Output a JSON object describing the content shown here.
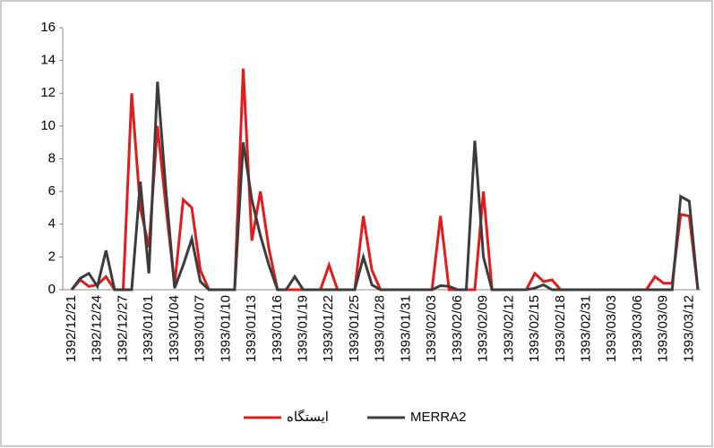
{
  "chart_data": {
    "type": "line",
    "categories": [
      "1392/12/21",
      null,
      null,
      "1392/12/24",
      null,
      null,
      "1392/12/27",
      null,
      null,
      "1393/01/01",
      null,
      null,
      "1393/01/04",
      null,
      null,
      "1393/01/07",
      null,
      null,
      "1393/01/10",
      null,
      null,
      "1393/01/13",
      null,
      null,
      "1393/01/16",
      null,
      null,
      "1393/01/19",
      null,
      null,
      "1393/01/22",
      null,
      null,
      "1393/01/25",
      null,
      null,
      "1393/01/28",
      null,
      null,
      "1393/01/31",
      null,
      null,
      "1393/02/03",
      null,
      null,
      "1393/02/06",
      null,
      null,
      "1393/02/09",
      null,
      null,
      "1393/02/12",
      null,
      null,
      "1393/02/15",
      null,
      null,
      "1393/02/18",
      null,
      null,
      "1393/02/31",
      null,
      null,
      "1393/03/03",
      null,
      null,
      "1393/03/06",
      null,
      null,
      "1393/03/09",
      null,
      null,
      "1393/03/12",
      null
    ],
    "series": [
      {
        "name": "ایستگاه",
        "color": "#e31b1b",
        "values": [
          0,
          0.6,
          0.2,
          0.3,
          0.8,
          0,
          0,
          12,
          5,
          2.6,
          10,
          5,
          0.3,
          5.5,
          5,
          1.2,
          0,
          0,
          0,
          0,
          13.5,
          3,
          6,
          2.5,
          0,
          0,
          0,
          0,
          0,
          0,
          1.5,
          0,
          0,
          0,
          4.5,
          1.2,
          0,
          0,
          0,
          0,
          0,
          0,
          0,
          4.5,
          0,
          0,
          0,
          0,
          6,
          0,
          0,
          0,
          0,
          0,
          1.0,
          0.5,
          0.6,
          0,
          0,
          0,
          0,
          0,
          0,
          0,
          0,
          0,
          0,
          0,
          0.8,
          0.4,
          0.4,
          4.6,
          4.5,
          0
        ]
      },
      {
        "name": "MERRA2",
        "color": "#3c3c3c",
        "values": [
          0,
          0.7,
          1.0,
          0.2,
          2.4,
          0,
          0,
          0,
          6.6,
          1.0,
          12.7,
          6,
          0.1,
          1.5,
          3.1,
          0.5,
          0,
          0,
          0,
          0,
          9,
          5.5,
          3.3,
          1.5,
          0,
          0,
          0.8,
          0,
          0,
          0,
          0,
          0,
          0,
          0,
          2.0,
          0.3,
          0,
          0,
          0,
          0,
          0,
          0,
          0,
          0.25,
          0.2,
          0,
          0,
          9.1,
          2,
          0,
          0,
          0,
          0,
          0,
          0.1,
          0.3,
          0,
          0,
          0,
          0,
          0,
          0,
          0,
          0,
          0,
          0,
          0,
          0,
          0,
          0,
          0,
          5.7,
          5.4,
          0
        ]
      }
    ],
    "ylim": [
      0,
      16
    ],
    "yticks": [
      0,
      2,
      4,
      6,
      8,
      10,
      12,
      14,
      16
    ],
    "grid": false
  }
}
